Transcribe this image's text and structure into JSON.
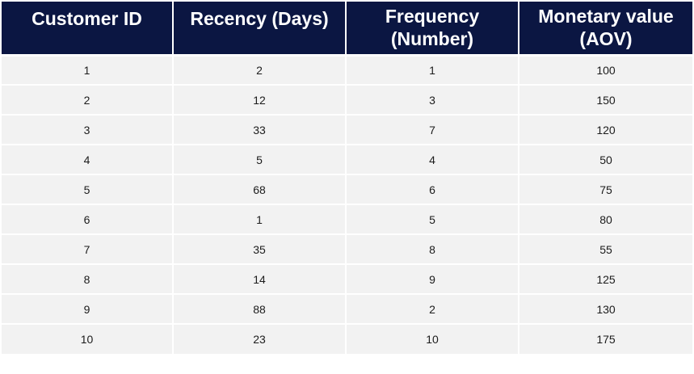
{
  "table": {
    "headers": [
      {
        "line1": "Customer ID",
        "line2": ""
      },
      {
        "line1": "Recency (Days)",
        "line2": ""
      },
      {
        "line1": "Frequency",
        "line2": "(Number)"
      },
      {
        "line1": "Monetary value",
        "line2": "(AOV)"
      }
    ],
    "rows": [
      [
        "1",
        "2",
        "1",
        "100"
      ],
      [
        "2",
        "12",
        "3",
        "150"
      ],
      [
        "3",
        "33",
        "7",
        "120"
      ],
      [
        "4",
        "5",
        "4",
        "50"
      ],
      [
        "5",
        "68",
        "6",
        "75"
      ],
      [
        "6",
        "1",
        "5",
        "80"
      ],
      [
        "7",
        "35",
        "8",
        "55"
      ],
      [
        "8",
        "14",
        "9",
        "125"
      ],
      [
        "9",
        "88",
        "2",
        "130"
      ],
      [
        "10",
        "23",
        "10",
        "175"
      ]
    ]
  },
  "colors": {
    "header_bg": "#0b1642",
    "header_text": "#ffffff",
    "cell_bg": "#f2f2f2",
    "cell_text": "#1c1c1c"
  }
}
